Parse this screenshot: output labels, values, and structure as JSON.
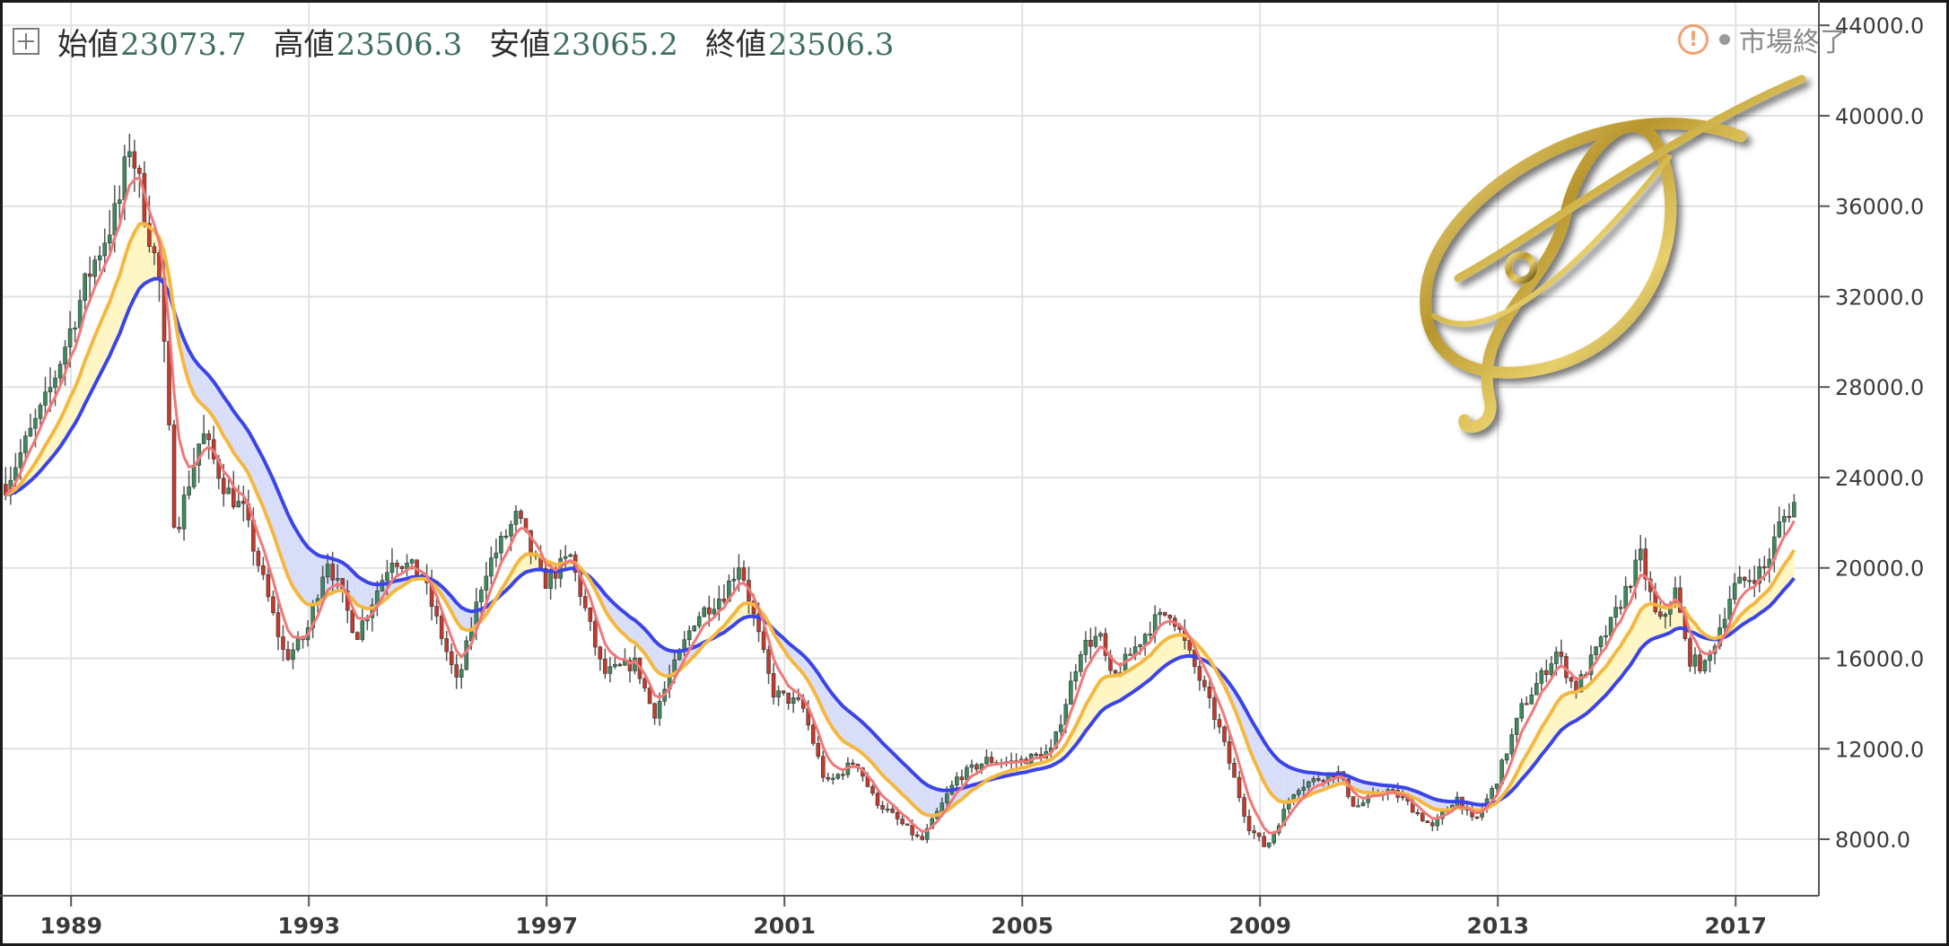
{
  "ohlc": {
    "open_label": "始値",
    "open_value": "23073.7",
    "high_label": "高値",
    "high_value": "23506.3",
    "low_label": "安値",
    "low_value": "23065.2",
    "close_label": "終値",
    "close_value": "23506.3"
  },
  "status": {
    "icon": "warning-circle-icon",
    "text": "市場終了"
  },
  "colors": {
    "up": "#3e8a5e",
    "down": "#c43a2c",
    "wick": "#555555",
    "ma_short": "#f07878",
    "ma_mid": "#f4b840",
    "ma_long": "#3a44e8",
    "fill_bull": "#fff6c4",
    "fill_bear": "#d8defa",
    "grid": "#e2e2e2"
  },
  "chart_data": {
    "type": "candlestick",
    "interval": "monthly",
    "x_range": [
      1987.85,
      2018.4
    ],
    "ylim": [
      5500,
      45000
    ],
    "y_ticks": [
      8000,
      12000,
      16000,
      20000,
      24000,
      28000,
      32000,
      36000,
      40000,
      44000
    ],
    "y_tick_labels": [
      "8000.0",
      "12000.0",
      "16000.0",
      "20000.0",
      "24000.0",
      "28000.0",
      "32000.0",
      "36000.0",
      "40000.0",
      "44000.0"
    ],
    "x_ticks": [
      1989,
      1993,
      1997,
      2001,
      2005,
      2009,
      2013,
      2017
    ],
    "x_tick_labels": [
      "1989",
      "1993",
      "1997",
      "2001",
      "2005",
      "2009",
      "2013",
      "2017"
    ],
    "price_path": [
      [
        1987.9,
        23700
      ],
      [
        1988.6,
        27500
      ],
      [
        1989.3,
        33000
      ],
      [
        1989.8,
        36000
      ],
      [
        1989.99,
        38900
      ],
      [
        1990.5,
        32500
      ],
      [
        1990.75,
        21500
      ],
      [
        1991.2,
        26000
      ],
      [
        1991.6,
        23500
      ],
      [
        1991.9,
        22500
      ],
      [
        1992.6,
        16000
      ],
      [
        1992.95,
        17000
      ],
      [
        1993.3,
        20500
      ],
      [
        1993.8,
        17000
      ],
      [
        1994.4,
        20500
      ],
      [
        1994.9,
        19700
      ],
      [
        1995.5,
        14800
      ],
      [
        1995.95,
        19800
      ],
      [
        1996.5,
        22300
      ],
      [
        1996.95,
        19300
      ],
      [
        1997.4,
        20500
      ],
      [
        1997.95,
        15300
      ],
      [
        1998.5,
        15800
      ],
      [
        1998.8,
        13500
      ],
      [
        1999.5,
        17800
      ],
      [
        1999.99,
        18900
      ],
      [
        2000.25,
        20300
      ],
      [
        2000.8,
        14500
      ],
      [
        2001.3,
        13900
      ],
      [
        2001.7,
        10400
      ],
      [
        2002.2,
        11500
      ],
      [
        2002.5,
        9800
      ],
      [
        2003.3,
        7900
      ],
      [
        2003.9,
        10700
      ],
      [
        2004.4,
        11500
      ],
      [
        2004.9,
        11400
      ],
      [
        2005.5,
        11900
      ],
      [
        2005.99,
        16500
      ],
      [
        2006.3,
        17000
      ],
      [
        2006.5,
        15000
      ],
      [
        2007.2,
        17600
      ],
      [
        2007.5,
        18100
      ],
      [
        2007.95,
        15300
      ],
      [
        2008.3,
        13000
      ],
      [
        2008.8,
        8600
      ],
      [
        2009.1,
        7600
      ],
      [
        2009.6,
        10300
      ],
      [
        2010.3,
        11000
      ],
      [
        2010.6,
        9400
      ],
      [
        2011.1,
        10200
      ],
      [
        2011.4,
        9800
      ],
      [
        2011.9,
        8500
      ],
      [
        2012.3,
        9900
      ],
      [
        2012.6,
        8700
      ],
      [
        2012.95,
        10400
      ],
      [
        2013.4,
        13800
      ],
      [
        2013.99,
        16300
      ],
      [
        2014.3,
        14600
      ],
      [
        2014.9,
        17500
      ],
      [
        2015.4,
        20500
      ],
      [
        2015.7,
        17400
      ],
      [
        2015.99,
        19000
      ],
      [
        2016.2,
        16000
      ],
      [
        2016.5,
        15600
      ],
      [
        2016.95,
        19100
      ],
      [
        2017.5,
        20000
      ],
      [
        2017.75,
        22000
      ],
      [
        2017.99,
        22900
      ],
      [
        2018.05,
        23506
      ]
    ],
    "ma_short_period": 5,
    "ma_mid_period": 13,
    "ma_long_period": 26,
    "legend": "none",
    "grid": true
  }
}
